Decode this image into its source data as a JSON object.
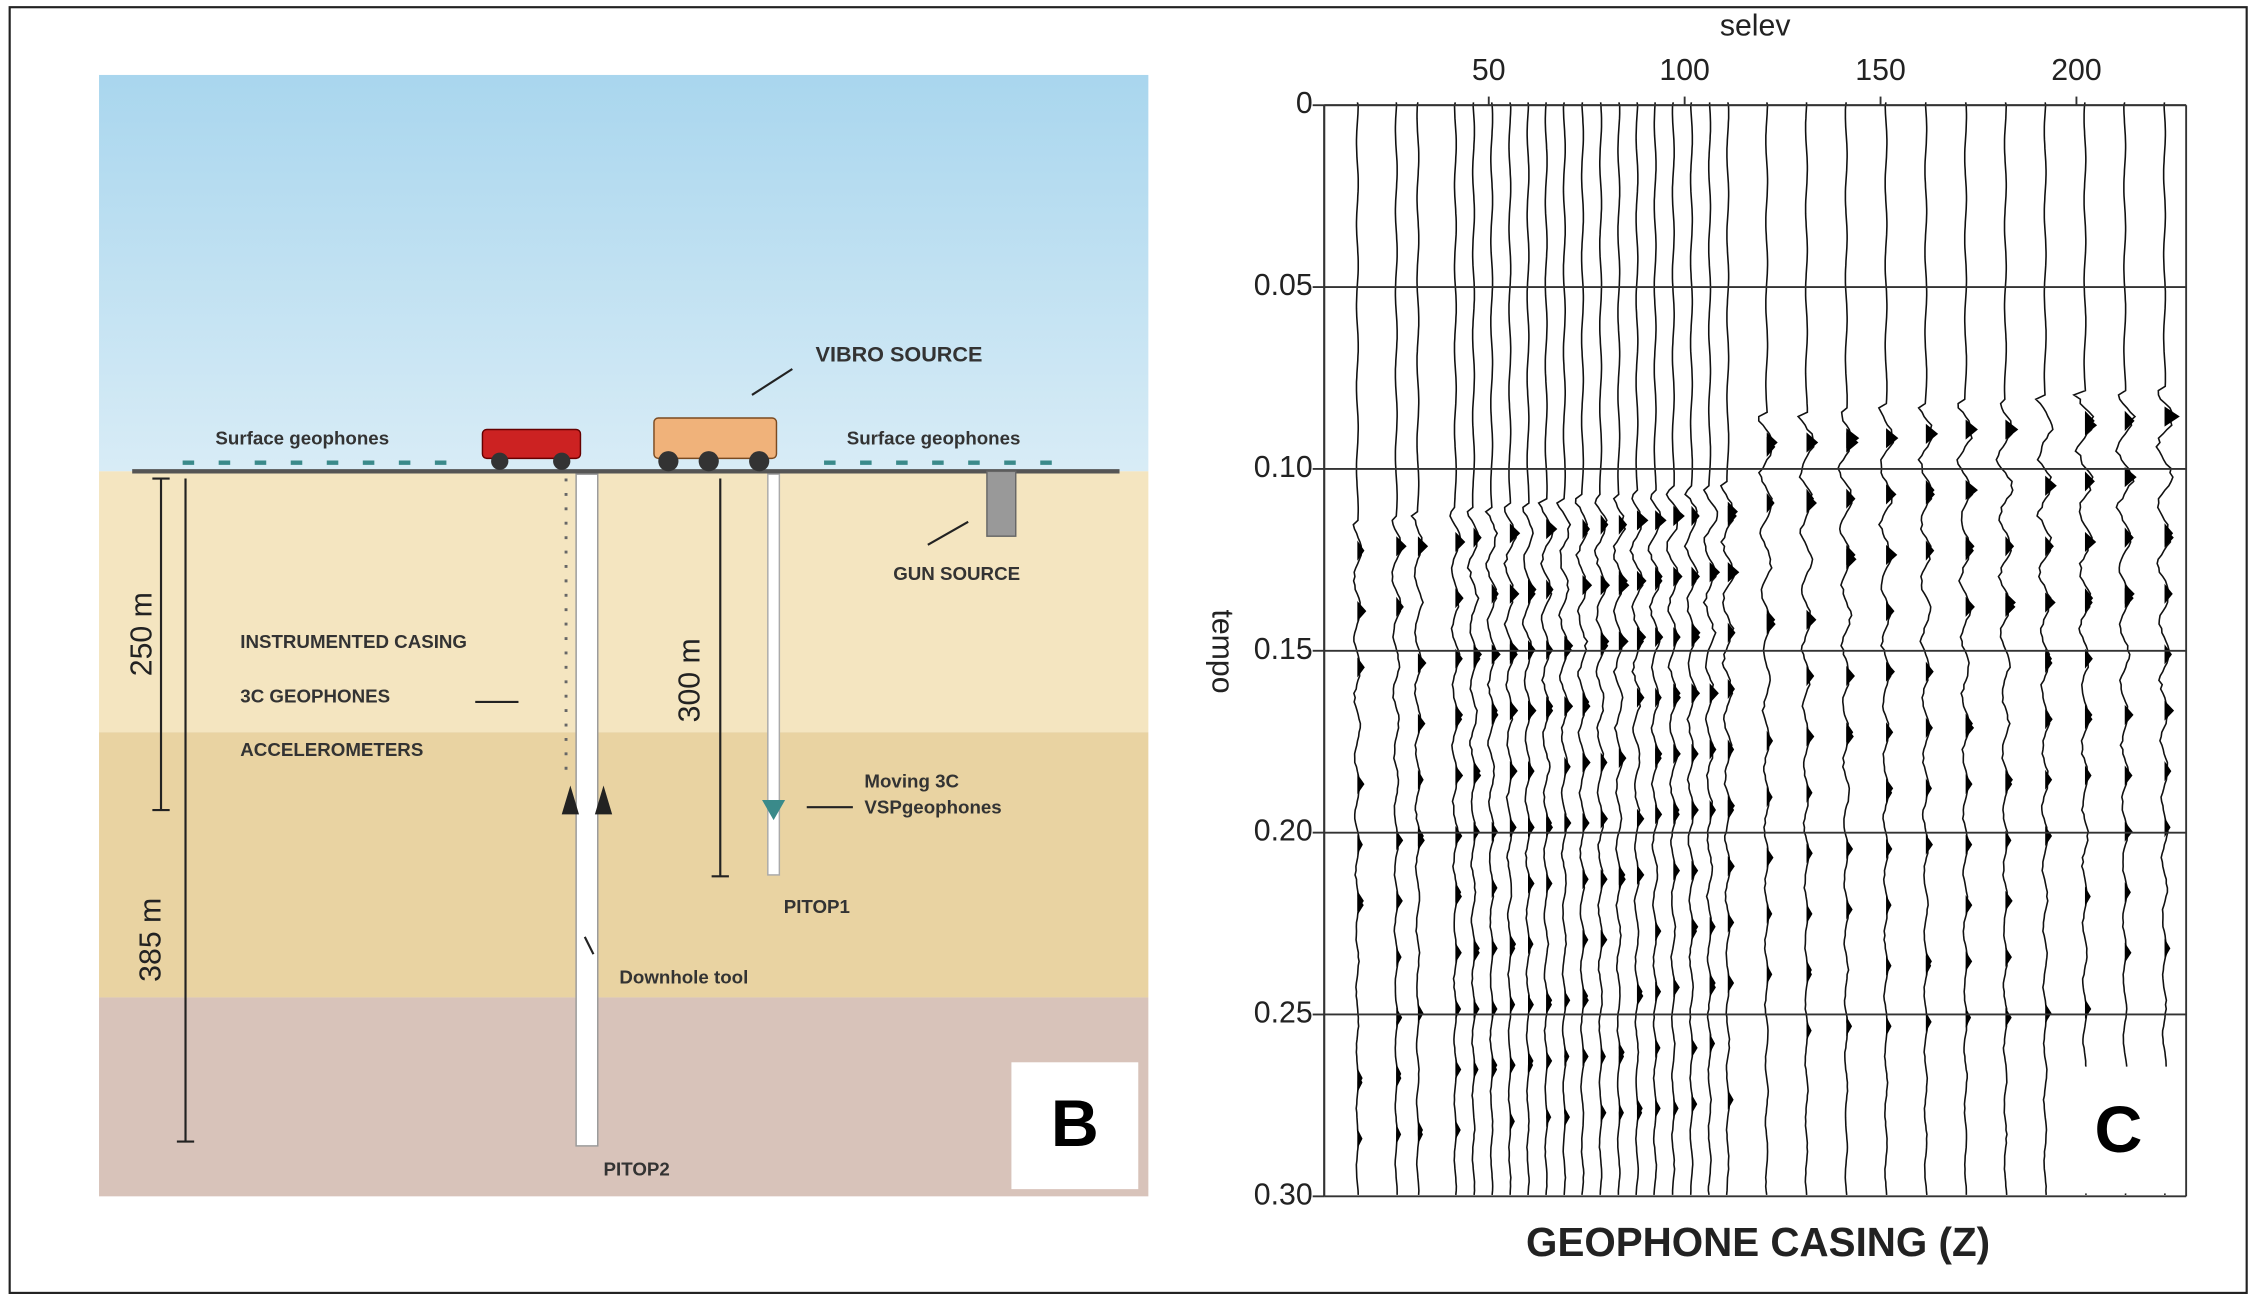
{
  "diagram": {
    "vibro_source": "VIBRO SOURCE",
    "surface_geophones_left": "Surface geophones",
    "surface_geophones_right": "Surface geophones",
    "gun_source": "GUN SOURCE",
    "depth_250": "250 m",
    "depth_300": "300 m",
    "depth_385": "385 m",
    "instrumented_casing": "INSTRUMENTED CASING",
    "geophones_3c": "3C GEOPHONES",
    "accelerometers": "ACCELEROMETERS",
    "moving_3c": "Moving 3C",
    "vsp_geophones": "VSPgeophones",
    "pitop1": "PITOP1",
    "downhole_tool": "Downhole tool",
    "pitop2": "PITOP2",
    "panel_label": "B"
  },
  "chart_data": {
    "type": "seismic",
    "panel_label": "C",
    "title": "GEOPHONE CASING (Z)",
    "x_label": "selev",
    "y_label": "tempo",
    "xlim": [
      8,
      228
    ],
    "xticks": [
      50,
      100,
      150,
      200
    ],
    "ylim": [
      0,
      0.3
    ],
    "yticks": [
      0,
      0.05,
      {
        "value": 0.1,
        "label": "0.10"
      },
      0.15,
      {
        "value": 0.2,
        "label": "0.20"
      },
      0.25,
      {
        "value": 0.3,
        "label": "0.30"
      }
    ],
    "y_inverted": true,
    "grid": true
  }
}
